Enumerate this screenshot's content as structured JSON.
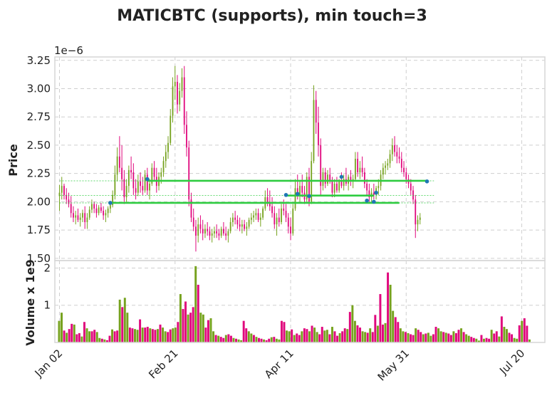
{
  "chart_data": [
    {
      "type": "candlestick",
      "title": "MATICBTC (supports), min touch=3",
      "ylabel": "Price",
      "y_scale_label": "1e−6",
      "yticks": [
        1.5,
        1.75,
        2.0,
        2.25,
        2.5,
        2.75,
        3.0,
        3.25
      ],
      "ylim": [
        1.48,
        3.28
      ],
      "xticks": [
        "Jan 02",
        "Feb 21",
        "Apr 11",
        "May 31",
        "Jul 20"
      ],
      "xtick_positions": [
        0,
        50,
        100,
        150,
        200
      ],
      "xlim": [
        -2,
        210
      ],
      "grid": true,
      "colors": {
        "up": "#76a21e",
        "down": "#e0077d",
        "support": "#2ecc40",
        "touch": "#1f77b4"
      },
      "ohlc": [
        [
          0,
          2.05,
          2.15,
          1.92,
          2.08
        ],
        [
          1,
          2.08,
          2.22,
          2.02,
          2.14
        ],
        [
          2,
          2.14,
          2.16,
          2.02,
          2.06
        ],
        [
          3,
          2.06,
          2.12,
          1.98,
          2.02
        ],
        [
          4,
          2.02,
          2.08,
          1.95,
          1.98
        ],
        [
          5,
          1.98,
          2.05,
          1.86,
          1.9
        ],
        [
          6,
          1.9,
          1.96,
          1.82,
          1.86
        ],
        [
          7,
          1.86,
          1.92,
          1.8,
          1.88
        ],
        [
          8,
          1.88,
          1.94,
          1.82,
          1.84
        ],
        [
          9,
          1.84,
          1.9,
          1.78,
          1.86
        ],
        [
          10,
          1.86,
          1.93,
          1.82,
          1.9
        ],
        [
          11,
          1.9,
          1.96,
          1.76,
          1.82
        ],
        [
          12,
          1.82,
          1.9,
          1.76,
          1.86
        ],
        [
          13,
          1.86,
          1.96,
          1.84,
          1.93
        ],
        [
          14,
          1.93,
          2.02,
          1.9,
          1.98
        ],
        [
          15,
          1.98,
          2.0,
          1.9,
          1.94
        ],
        [
          16,
          1.94,
          1.98,
          1.86,
          1.9
        ],
        [
          17,
          1.9,
          1.97,
          1.88,
          1.95
        ],
        [
          18,
          1.95,
          1.99,
          1.9,
          1.92
        ],
        [
          19,
          1.92,
          1.96,
          1.84,
          1.88
        ],
        [
          20,
          1.88,
          1.93,
          1.82,
          1.9
        ],
        [
          21,
          1.9,
          1.96,
          1.86,
          1.94
        ],
        [
          22,
          1.94,
          2.0,
          1.9,
          1.97
        ],
        [
          23,
          1.97,
          2.1,
          1.95,
          2.06
        ],
        [
          24,
          2.06,
          2.32,
          2.02,
          2.24
        ],
        [
          25,
          2.24,
          2.48,
          2.18,
          2.4
        ],
        [
          26,
          2.4,
          2.58,
          2.26,
          2.3
        ],
        [
          27,
          2.3,
          2.5,
          2.1,
          2.2
        ],
        [
          28,
          2.2,
          2.28,
          1.98,
          2.04
        ],
        [
          29,
          2.04,
          2.2,
          2.0,
          2.14
        ],
        [
          30,
          2.14,
          2.32,
          2.08,
          2.28
        ],
        [
          31,
          2.28,
          2.4,
          2.2,
          2.26
        ],
        [
          32,
          2.26,
          2.34,
          2.06,
          2.12
        ],
        [
          33,
          2.12,
          2.2,
          2.02,
          2.08
        ],
        [
          34,
          2.08,
          2.24,
          2.05,
          2.18
        ],
        [
          35,
          2.18,
          2.26,
          2.08,
          2.14
        ],
        [
          36,
          2.14,
          2.22,
          2.06,
          2.1
        ],
        [
          37,
          2.1,
          2.28,
          2.08,
          2.24
        ],
        [
          38,
          2.24,
          2.3,
          2.06,
          2.1
        ],
        [
          39,
          2.1,
          2.2,
          2.02,
          2.16
        ],
        [
          40,
          2.16,
          2.34,
          2.14,
          2.3
        ],
        [
          41,
          2.3,
          2.36,
          2.18,
          2.22
        ],
        [
          42,
          2.22,
          2.3,
          2.08,
          2.14
        ],
        [
          43,
          2.14,
          2.26,
          2.1,
          2.22
        ],
        [
          44,
          2.22,
          2.3,
          2.16,
          2.26
        ],
        [
          45,
          2.26,
          2.4,
          2.22,
          2.36
        ],
        [
          46,
          2.36,
          2.5,
          2.3,
          2.44
        ],
        [
          47,
          2.44,
          2.58,
          2.38,
          2.52
        ],
        [
          48,
          2.52,
          2.82,
          2.5,
          2.76
        ],
        [
          49,
          2.76,
          3.1,
          2.7,
          3.02
        ],
        [
          50,
          3.02,
          3.2,
          2.9,
          3.06
        ],
        [
          51,
          3.06,
          3.12,
          2.78,
          2.86
        ],
        [
          52,
          2.86,
          3.05,
          2.8,
          2.98
        ],
        [
          53,
          2.98,
          3.18,
          2.92,
          3.1
        ],
        [
          54,
          3.1,
          3.2,
          2.6,
          2.68
        ],
        [
          55,
          2.68,
          2.8,
          2.4,
          2.48
        ],
        [
          56,
          2.48,
          2.54,
          1.96,
          2.02
        ],
        [
          57,
          2.02,
          2.08,
          1.82,
          1.86
        ],
        [
          58,
          1.86,
          1.94,
          1.74,
          1.78
        ],
        [
          59,
          1.78,
          1.84,
          1.56,
          1.7
        ],
        [
          60,
          1.7,
          1.86,
          1.64,
          1.8
        ],
        [
          61,
          1.8,
          1.88,
          1.72,
          1.76
        ],
        [
          62,
          1.76,
          1.84,
          1.66,
          1.72
        ],
        [
          63,
          1.72,
          1.8,
          1.68,
          1.76
        ],
        [
          64,
          1.76,
          1.82,
          1.7,
          1.74
        ],
        [
          65,
          1.74,
          1.78,
          1.66,
          1.7
        ],
        [
          66,
          1.7,
          1.76,
          1.64,
          1.72
        ],
        [
          67,
          1.72,
          1.78,
          1.68,
          1.74
        ],
        [
          68,
          1.74,
          1.8,
          1.68,
          1.72
        ],
        [
          69,
          1.72,
          1.76,
          1.66,
          1.7
        ],
        [
          70,
          1.7,
          1.78,
          1.68,
          1.76
        ],
        [
          71,
          1.76,
          1.82,
          1.7,
          1.72
        ],
        [
          72,
          1.72,
          1.78,
          1.66,
          1.7
        ],
        [
          73,
          1.7,
          1.76,
          1.64,
          1.74
        ],
        [
          74,
          1.74,
          1.86,
          1.72,
          1.82
        ],
        [
          75,
          1.82,
          1.9,
          1.78,
          1.86
        ],
        [
          76,
          1.86,
          1.92,
          1.8,
          1.84
        ],
        [
          77,
          1.84,
          1.88,
          1.76,
          1.8
        ],
        [
          78,
          1.8,
          1.86,
          1.74,
          1.78
        ],
        [
          79,
          1.78,
          1.84,
          1.72,
          1.8
        ],
        [
          80,
          1.8,
          1.84,
          1.74,
          1.76
        ],
        [
          81,
          1.76,
          1.82,
          1.7,
          1.78
        ],
        [
          82,
          1.78,
          1.86,
          1.76,
          1.84
        ],
        [
          83,
          1.84,
          1.9,
          1.8,
          1.86
        ],
        [
          84,
          1.86,
          1.92,
          1.82,
          1.88
        ],
        [
          85,
          1.88,
          1.94,
          1.84,
          1.9
        ],
        [
          86,
          1.9,
          1.94,
          1.82,
          1.84
        ],
        [
          87,
          1.84,
          1.9,
          1.78,
          1.86
        ],
        [
          88,
          1.86,
          1.96,
          1.84,
          1.94
        ],
        [
          89,
          1.94,
          2.1,
          1.92,
          2.04
        ],
        [
          90,
          2.04,
          2.12,
          1.96,
          2.0
        ],
        [
          91,
          2.0,
          2.1,
          1.92,
          1.96
        ],
        [
          92,
          1.96,
          2.04,
          1.86,
          1.9
        ],
        [
          93,
          1.9,
          1.96,
          1.76,
          1.8
        ],
        [
          94,
          1.8,
          1.9,
          1.7,
          1.86
        ],
        [
          95,
          1.86,
          1.94,
          1.78,
          1.82
        ],
        [
          96,
          1.82,
          1.98,
          1.8,
          1.94
        ],
        [
          97,
          1.94,
          2.02,
          1.88,
          1.92
        ],
        [
          98,
          1.92,
          1.98,
          1.82,
          1.86
        ],
        [
          99,
          1.86,
          1.9,
          1.72,
          1.78
        ],
        [
          100,
          1.78,
          1.86,
          1.66,
          1.72
        ],
        [
          101,
          1.72,
          1.98,
          1.7,
          1.94
        ],
        [
          102,
          1.94,
          2.2,
          1.92,
          2.12
        ],
        [
          103,
          2.12,
          2.24,
          2.02,
          2.06
        ],
        [
          104,
          2.06,
          2.18,
          2.0,
          2.14
        ],
        [
          105,
          2.14,
          2.24,
          2.04,
          2.08
        ],
        [
          106,
          2.08,
          2.14,
          1.98,
          2.02
        ],
        [
          107,
          2.02,
          2.26,
          2.0,
          2.22
        ],
        [
          108,
          2.22,
          2.3,
          1.96,
          2.0
        ],
        [
          109,
          2.0,
          2.44,
          1.98,
          2.36
        ],
        [
          110,
          2.36,
          3.03,
          2.34,
          2.9
        ],
        [
          111,
          2.9,
          2.98,
          2.6,
          2.7
        ],
        [
          112,
          2.7,
          2.84,
          2.4,
          2.5
        ],
        [
          113,
          2.5,
          2.56,
          2.06,
          2.14
        ],
        [
          114,
          2.14,
          2.3,
          2.1,
          2.26
        ],
        [
          115,
          2.26,
          2.3,
          2.12,
          2.16
        ],
        [
          116,
          2.16,
          2.28,
          2.14,
          2.24
        ],
        [
          117,
          2.24,
          2.3,
          2.16,
          2.18
        ],
        [
          118,
          2.18,
          2.22,
          2.04,
          2.08
        ],
        [
          119,
          2.08,
          2.2,
          2.04,
          2.16
        ],
        [
          120,
          2.16,
          2.22,
          2.08,
          2.1
        ],
        [
          121,
          2.1,
          2.2,
          2.08,
          2.18
        ],
        [
          122,
          2.18,
          2.26,
          2.12,
          2.14
        ],
        [
          123,
          2.14,
          2.24,
          2.1,
          2.2
        ],
        [
          124,
          2.2,
          2.3,
          2.14,
          2.16
        ],
        [
          125,
          2.16,
          2.24,
          2.1,
          2.22
        ],
        [
          126,
          2.22,
          2.28,
          2.14,
          2.18
        ],
        [
          127,
          2.18,
          2.24,
          2.12,
          2.2
        ],
        [
          128,
          2.2,
          2.44,
          2.18,
          2.38
        ],
        [
          129,
          2.38,
          2.44,
          2.22,
          2.26
        ],
        [
          130,
          2.26,
          2.36,
          2.2,
          2.3
        ],
        [
          131,
          2.3,
          2.4,
          2.22,
          2.26
        ],
        [
          132,
          2.26,
          2.3,
          2.12,
          2.16
        ],
        [
          133,
          2.16,
          2.2,
          2.06,
          2.1
        ],
        [
          134,
          2.1,
          2.16,
          2.0,
          2.04
        ],
        [
          135,
          2.04,
          2.12,
          2.0,
          2.08
        ],
        [
          136,
          2.08,
          2.16,
          2.02,
          2.06
        ],
        [
          137,
          2.06,
          2.14,
          2.02,
          2.12
        ],
        [
          138,
          2.12,
          2.2,
          2.06,
          2.14
        ],
        [
          139,
          2.14,
          2.28,
          2.1,
          2.24
        ],
        [
          140,
          2.24,
          2.34,
          2.2,
          2.3
        ],
        [
          141,
          2.3,
          2.36,
          2.24,
          2.32
        ],
        [
          142,
          2.32,
          2.38,
          2.28,
          2.34
        ],
        [
          143,
          2.34,
          2.46,
          2.3,
          2.42
        ],
        [
          144,
          2.42,
          2.56,
          2.36,
          2.5
        ],
        [
          145,
          2.5,
          2.58,
          2.4,
          2.44
        ],
        [
          146,
          2.44,
          2.5,
          2.34,
          2.4
        ],
        [
          147,
          2.4,
          2.48,
          2.34,
          2.38
        ],
        [
          148,
          2.38,
          2.44,
          2.26,
          2.3
        ],
        [
          149,
          2.3,
          2.36,
          2.22,
          2.26
        ],
        [
          150,
          2.26,
          2.3,
          2.16,
          2.2
        ],
        [
          151,
          2.2,
          2.24,
          2.12,
          2.16
        ],
        [
          152,
          2.16,
          2.2,
          2.06,
          2.1
        ],
        [
          153,
          2.1,
          2.14,
          1.98,
          2.02
        ],
        [
          154,
          2.02,
          2.06,
          1.68,
          1.8
        ],
        [
          155,
          1.8,
          1.88,
          1.74,
          1.84
        ],
        [
          156,
          1.84,
          1.9,
          1.8,
          1.86
        ]
      ],
      "supports": [
        {
          "level": 1.99,
          "start": 22,
          "end": 147
        },
        {
          "level": 2.185,
          "start": 38,
          "end": 159
        },
        {
          "level": 2.055,
          "start": 98,
          "end": 136
        }
      ],
      "touches": [
        {
          "x": 22,
          "y": 1.99
        },
        {
          "x": 38,
          "y": 2.2
        },
        {
          "x": 98,
          "y": 2.06
        },
        {
          "x": 103,
          "y": 2.07
        },
        {
          "x": 108,
          "y": 2.05
        },
        {
          "x": 122,
          "y": 2.22
        },
        {
          "x": 133,
          "y": 2.01
        },
        {
          "x": 136,
          "y": 2.0
        },
        {
          "x": 137,
          "y": 2.08
        },
        {
          "x": 159,
          "y": 2.18
        }
      ]
    },
    {
      "type": "bar",
      "ylabel": "Volume x 1e9",
      "yticks": [
        1,
        2
      ],
      "ylim": [
        0,
        2.2
      ],
      "volume": [
        0.58,
        0.8,
        0.32,
        0.26,
        0.36,
        0.5,
        0.48,
        0.22,
        0.25,
        0.16,
        0.55,
        0.38,
        0.3,
        0.3,
        0.34,
        0.28,
        0.12,
        0.1,
        0.08,
        0.06,
        0.18,
        0.35,
        0.3,
        0.32,
        1.15,
        0.95,
        1.2,
        0.8,
        0.4,
        0.38,
        0.36,
        0.34,
        0.62,
        0.4,
        0.4,
        0.42,
        0.38,
        0.36,
        0.34,
        0.36,
        0.48,
        0.4,
        0.3,
        0.28,
        0.35,
        0.38,
        0.4,
        0.55,
        1.3,
        0.9,
        1.1,
        0.75,
        0.8,
        0.95,
        2.05,
        1.55,
        0.8,
        0.75,
        0.4,
        0.6,
        0.65,
        0.3,
        0.2,
        0.18,
        0.15,
        0.12,
        0.2,
        0.22,
        0.18,
        0.12,
        0.1,
        0.08,
        0.06,
        0.58,
        0.38,
        0.3,
        0.24,
        0.2,
        0.15,
        0.12,
        0.1,
        0.08,
        0.06,
        0.1,
        0.14,
        0.15,
        0.1,
        0.08,
        0.58,
        0.55,
        0.32,
        0.3,
        0.35,
        0.2,
        0.24,
        0.2,
        0.3,
        0.38,
        0.36,
        0.3,
        0.45,
        0.4,
        0.28,
        0.22,
        0.42,
        0.32,
        0.34,
        0.22,
        0.42,
        0.3,
        0.18,
        0.25,
        0.3,
        0.38,
        0.36,
        0.82,
        1.0,
        0.58,
        0.46,
        0.4,
        0.3,
        0.28,
        0.26,
        0.38,
        0.28,
        0.74,
        0.45,
        1.3,
        0.48,
        0.52,
        1.88,
        1.55,
        0.85,
        0.68,
        0.55,
        0.38,
        0.3,
        0.28,
        0.25,
        0.22,
        0.2,
        0.38,
        0.34,
        0.28,
        0.22,
        0.24,
        0.26,
        0.18,
        0.22,
        0.42,
        0.38,
        0.3,
        0.28,
        0.26,
        0.24,
        0.2,
        0.3,
        0.25,
        0.34,
        0.38,
        0.28,
        0.22,
        0.18,
        0.15,
        0.12,
        0.1,
        0.05,
        0.2,
        0.1,
        0.12,
        0.1,
        0.34,
        0.24,
        0.3,
        0.16,
        0.7,
        0.42,
        0.36,
        0.26,
        0.22,
        0.12,
        0.1,
        0.46,
        0.58,
        0.65,
        0.45,
        0.08
      ]
    }
  ]
}
